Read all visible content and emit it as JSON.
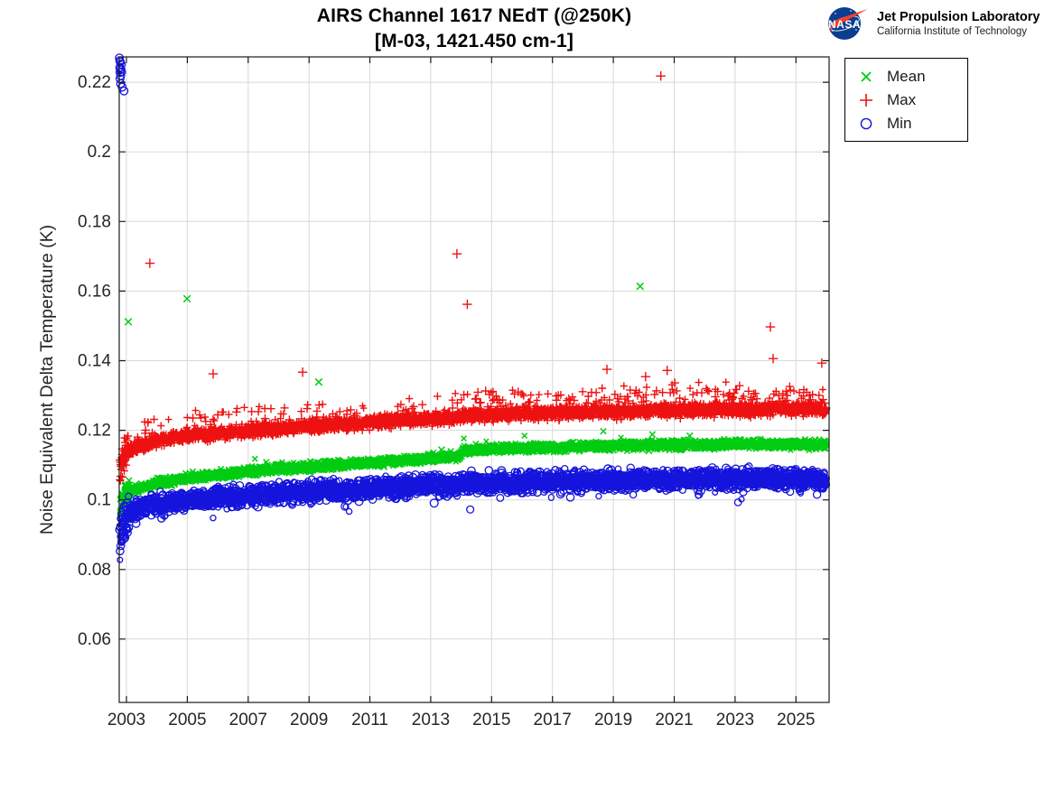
{
  "header": {
    "title_line1": "AIRS Channel 1617 NEdT (@250K)",
    "title_line2": "[M-03, 1421.450 cm-1]"
  },
  "logo": {
    "agency": "NASA",
    "org_name": "Jet Propulsion Laboratory",
    "org_sub": "California Institute of Technology",
    "nasa_blue": "#0b3d91",
    "nasa_red": "#fc3d21"
  },
  "legend": {
    "items": [
      {
        "label": "Mean",
        "marker": "x",
        "color": "#00cc11"
      },
      {
        "label": "Max",
        "marker": "+",
        "color": "#ee1111"
      },
      {
        "label": "Min",
        "marker": "o",
        "color": "#1414dd"
      }
    ]
  },
  "chart_data": {
    "type": "scatter",
    "title": "AIRS Channel 1617 NEdT (@250K) [M-03, 1421.450 cm-1]",
    "xlabel": "",
    "ylabel": "Noise Equivalent Delta Temperature (K)",
    "xlim": [
      2002.763,
      2026.09
    ],
    "ylim": [
      0.0418,
      0.2273
    ],
    "xticks": [
      2003,
      2005,
      2007,
      2009,
      2011,
      2013,
      2015,
      2017,
      2019,
      2021,
      2023,
      2025
    ],
    "xtick_labels": [
      "2003",
      "2005",
      "2007",
      "2009",
      "2011",
      "2013",
      "2015",
      "2017",
      "2019",
      "2021",
      "2023",
      "2025"
    ],
    "yticks": [
      0.06,
      0.08,
      0.1,
      0.12,
      0.14,
      0.16,
      0.18,
      0.2,
      0.22
    ],
    "ytick_labels": [
      "0.06",
      "0.08",
      "0.1",
      "0.12",
      "0.14",
      "0.16",
      "0.18",
      "0.2",
      "0.22"
    ],
    "grid": true,
    "legend_position": "top-right-outside",
    "style": {
      "background": "#ffffff",
      "grid_color": "#d8d8d8",
      "axis_color": "#1a1a1a",
      "tick_label_color": "#262626",
      "tick_len": 7
    },
    "x_start": 2002.78,
    "x_end": 2026.0,
    "points_per_year": 165,
    "seed": 20,
    "series": [
      {
        "name": "Mean",
        "marker": "x",
        "color": "#00cc11",
        "marker_size": 3.0,
        "stroke_width": 1.5,
        "band_halfwidth": 0.0018,
        "early_spread_factor": 2.6,
        "tail": {
          "prob": 0.004,
          "lo": 0.0015,
          "hi": 0.004,
          "sign": 1,
          "late_mult": 1
        },
        "trend": [
          [
            2002.78,
            0.0975
          ],
          [
            2002.85,
            0.0995
          ],
          [
            2003.0,
            0.1022
          ],
          [
            2003.3,
            0.1032
          ],
          [
            2004,
            0.1048
          ],
          [
            2005,
            0.1063
          ],
          [
            2006,
            0.1073
          ],
          [
            2007,
            0.1082
          ],
          [
            2008,
            0.1089
          ],
          [
            2009,
            0.1095
          ],
          [
            2010,
            0.1101
          ],
          [
            2011,
            0.1107
          ],
          [
            2012,
            0.1113
          ],
          [
            2013,
            0.1119
          ],
          [
            2013.95,
            0.1125
          ],
          [
            2014.05,
            0.1141
          ],
          [
            2015,
            0.1146
          ],
          [
            2016,
            0.1149
          ],
          [
            2017,
            0.1151
          ],
          [
            2018,
            0.1153
          ],
          [
            2019,
            0.1155
          ],
          [
            2020,
            0.1157
          ],
          [
            2021,
            0.1158
          ],
          [
            2022,
            0.1158
          ],
          [
            2023,
            0.116
          ],
          [
            2024,
            0.116
          ],
          [
            2025,
            0.1159
          ],
          [
            2026.0,
            0.1158
          ]
        ],
        "outliers": [
          [
            2003.06,
            0.1512
          ],
          [
            2004.99,
            0.1578
          ],
          [
            2009.32,
            0.1339
          ],
          [
            2019.88,
            0.1614
          ]
        ]
      },
      {
        "name": "Max",
        "marker": "+",
        "color": "#ee1111",
        "marker_size": 4.2,
        "stroke_width": 1.4,
        "band_halfwidth": 0.0026,
        "early_spread_factor": 2.5,
        "tail": {
          "prob": 0.045,
          "lo": 0.0015,
          "hi": 0.0068,
          "sign": 1,
          "late_mult": 2.0
        },
        "trend": [
          [
            2002.78,
            0.1085
          ],
          [
            2002.85,
            0.1105
          ],
          [
            2003.0,
            0.1135
          ],
          [
            2003.3,
            0.1153
          ],
          [
            2004,
            0.117
          ],
          [
            2005,
            0.1183
          ],
          [
            2006,
            0.119
          ],
          [
            2007,
            0.1197
          ],
          [
            2008,
            0.1205
          ],
          [
            2009,
            0.1212
          ],
          [
            2010,
            0.1218
          ],
          [
            2011,
            0.1224
          ],
          [
            2012,
            0.1229
          ],
          [
            2013,
            0.1233
          ],
          [
            2014,
            0.1239
          ],
          [
            2015,
            0.1245
          ],
          [
            2016,
            0.1247
          ],
          [
            2017,
            0.125
          ],
          [
            2018,
            0.1252
          ],
          [
            2019,
            0.1254
          ],
          [
            2020,
            0.1256
          ],
          [
            2021,
            0.1258
          ],
          [
            2022,
            0.1258
          ],
          [
            2023,
            0.126
          ],
          [
            2024,
            0.126
          ],
          [
            2025,
            0.1262
          ],
          [
            2026.0,
            0.1262
          ]
        ],
        "outliers": [
          [
            2003.77,
            0.168
          ],
          [
            2005.85,
            0.1362
          ],
          [
            2008.79,
            0.1367
          ],
          [
            2013.86,
            0.1707
          ],
          [
            2014.2,
            0.1562
          ],
          [
            2018.79,
            0.1375
          ],
          [
            2020.06,
            0.1354
          ],
          [
            2020.56,
            0.2218
          ],
          [
            2020.77,
            0.1372
          ],
          [
            2024.16,
            0.1497
          ],
          [
            2024.25,
            0.1406
          ],
          [
            2025.85,
            0.1393
          ]
        ]
      },
      {
        "name": "Min",
        "marker": "o",
        "color": "#1414dd",
        "marker_size": 3.3,
        "stroke_width": 1.3,
        "band_halfwidth": 0.004,
        "early_spread_factor": 2.2,
        "tail": {
          "prob": 0.012,
          "lo": 0.002,
          "hi": 0.0055,
          "sign": -1,
          "late_mult": 1
        },
        "trend": [
          [
            2002.78,
            0.0905
          ],
          [
            2002.85,
            0.0932
          ],
          [
            2003.0,
            0.096
          ],
          [
            2003.3,
            0.0975
          ],
          [
            2004,
            0.0986
          ],
          [
            2005,
            0.0999
          ],
          [
            2006,
            0.1007
          ],
          [
            2007,
            0.1013
          ],
          [
            2008,
            0.1018
          ],
          [
            2009,
            0.1023
          ],
          [
            2010,
            0.1028
          ],
          [
            2011,
            0.1032
          ],
          [
            2012,
            0.1037
          ],
          [
            2013,
            0.1041
          ],
          [
            2014,
            0.1044
          ],
          [
            2015,
            0.1047
          ],
          [
            2016,
            0.105
          ],
          [
            2017,
            0.1052
          ],
          [
            2018,
            0.1054
          ],
          [
            2019,
            0.1056
          ],
          [
            2020,
            0.1057
          ],
          [
            2021,
            0.1058
          ],
          [
            2022,
            0.1059
          ],
          [
            2023,
            0.106
          ],
          [
            2024,
            0.106
          ],
          [
            2025,
            0.106
          ],
          [
            2026.0,
            0.106
          ]
        ],
        "outliers": [
          [
            2002.79,
            0.0853
          ],
          [
            2002.81,
            0.0868
          ],
          [
            2002.84,
            0.088
          ],
          [
            2002.88,
            0.0895
          ],
          [
            2003.32,
            0.0932
          ]
        ],
        "start_high_cluster": [
          [
            2002.77,
            0.227
          ],
          [
            2002.78,
            0.2262
          ],
          [
            2002.78,
            0.2243
          ],
          [
            2002.79,
            0.2228
          ],
          [
            2002.79,
            0.221
          ],
          [
            2002.8,
            0.2258
          ],
          [
            2002.8,
            0.2236
          ],
          [
            2002.81,
            0.2219
          ],
          [
            2002.81,
            0.2196
          ],
          [
            2002.82,
            0.2238
          ],
          [
            2002.83,
            0.2252
          ],
          [
            2002.84,
            0.223
          ],
          [
            2002.86,
            0.2186
          ],
          [
            2002.92,
            0.2175
          ]
        ]
      }
    ]
  }
}
